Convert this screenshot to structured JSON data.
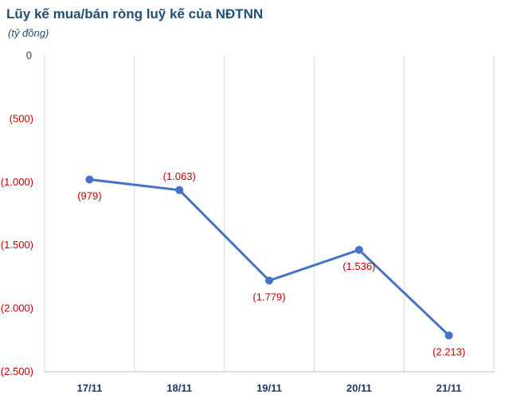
{
  "chart_data": {
    "type": "line",
    "title": "Lũy kế mua/bán ròng luỹ kế của NĐTNN",
    "subtitle": "(tỷ đồng)",
    "categories": [
      "17/11",
      "18/11",
      "19/11",
      "20/11",
      "21/11"
    ],
    "values": [
      -979,
      -1063,
      -1779,
      -1536,
      -2213
    ],
    "data_labels": [
      "(979)",
      "(1.063)",
      "(1.779)",
      "(1.536)",
      "(2.213)"
    ],
    "ylim": [
      -2500,
      0
    ],
    "yticks": [
      0,
      -500,
      -1000,
      -1500,
      -2000,
      -2500
    ],
    "ytick_labels": [
      "0",
      "(500)",
      "(1.000)",
      "(1.500)",
      "(2.000)",
      "(2.500)"
    ],
    "xlabel": "",
    "ylabel": "",
    "grid": "vertical",
    "colors": {
      "line": "#4472c4",
      "labels": "#c00000",
      "title": "#1f4e79",
      "grid": "#d9d9d9",
      "axis_text": "#1f3864"
    }
  }
}
